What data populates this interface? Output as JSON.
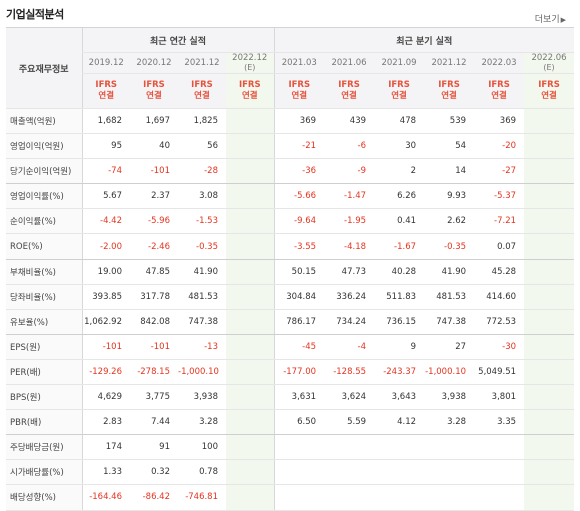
{
  "title": "기업실적분석",
  "more_label": "더보기",
  "header": {
    "corner": "주요재무정보",
    "annual_group": "최근 연간 실적",
    "quarter_group": "최근 분기 실적",
    "ifrs_top": "IFRS",
    "ifrs_bottom": "연결",
    "annual_periods": [
      "2019.12",
      "2020.12",
      "2021.12",
      "2022.12"
    ],
    "annual_est": "(E)",
    "quarter_periods": [
      "2021.03",
      "2021.06",
      "2021.09",
      "2021.12",
      "2022.03",
      "2022.06"
    ],
    "quarter_est": "(E)"
  },
  "rows": [
    {
      "label": "매출액(억원)",
      "annual": [
        "1,682",
        "1,697",
        "1,825",
        ""
      ],
      "quarter": [
        "369",
        "439",
        "478",
        "539",
        "369",
        ""
      ]
    },
    {
      "label": "영업이익(억원)",
      "annual": [
        "95",
        "40",
        "56",
        ""
      ],
      "quarter": [
        "-21",
        "-6",
        "30",
        "54",
        "-20",
        ""
      ]
    },
    {
      "label": "당기순이익(억원)",
      "annual": [
        "-74",
        "-101",
        "-28",
        ""
      ],
      "quarter": [
        "-36",
        "-9",
        "2",
        "14",
        "-27",
        ""
      ]
    },
    {
      "label": "영업이익률(%)",
      "annual": [
        "5.67",
        "2.37",
        "3.08",
        ""
      ],
      "quarter": [
        "-5.66",
        "-1.47",
        "6.26",
        "9.93",
        "-5.37",
        ""
      ]
    },
    {
      "label": "순이익률(%)",
      "annual": [
        "-4.42",
        "-5.96",
        "-1.53",
        ""
      ],
      "quarter": [
        "-9.64",
        "-1.95",
        "0.41",
        "2.62",
        "-7.21",
        ""
      ]
    },
    {
      "label": "ROE(%)",
      "annual": [
        "-2.00",
        "-2.46",
        "-0.35",
        ""
      ],
      "quarter": [
        "-3.55",
        "-4.18",
        "-1.67",
        "-0.35",
        "0.07",
        ""
      ]
    },
    {
      "label": "부채비율(%)",
      "annual": [
        "19.00",
        "47.85",
        "41.90",
        ""
      ],
      "quarter": [
        "50.15",
        "47.73",
        "40.28",
        "41.90",
        "45.28",
        ""
      ]
    },
    {
      "label": "당좌비율(%)",
      "annual": [
        "393.85",
        "317.78",
        "481.53",
        ""
      ],
      "quarter": [
        "304.84",
        "336.24",
        "511.83",
        "481.53",
        "414.60",
        ""
      ]
    },
    {
      "label": "유보율(%)",
      "annual": [
        "1,062.92",
        "842.08",
        "747.38",
        ""
      ],
      "quarter": [
        "786.17",
        "734.24",
        "736.15",
        "747.38",
        "772.53",
        ""
      ]
    },
    {
      "label": "EPS(원)",
      "annual": [
        "-101",
        "-101",
        "-13",
        ""
      ],
      "quarter": [
        "-45",
        "-4",
        "9",
        "27",
        "-30",
        ""
      ]
    },
    {
      "label": "PER(배)",
      "annual": [
        "-129.26",
        "-278.15",
        "-1,000.10",
        ""
      ],
      "quarter": [
        "-177.00",
        "-128.55",
        "-243.37",
        "-1,000.10",
        "5,049.51",
        ""
      ]
    },
    {
      "label": "BPS(원)",
      "annual": [
        "4,629",
        "3,775",
        "3,938",
        ""
      ],
      "quarter": [
        "3,631",
        "3,624",
        "3,643",
        "3,938",
        "3,801",
        ""
      ]
    },
    {
      "label": "PBR(배)",
      "annual": [
        "2.83",
        "7.44",
        "3.28",
        ""
      ],
      "quarter": [
        "6.50",
        "5.59",
        "4.12",
        "3.28",
        "3.35",
        ""
      ]
    },
    {
      "label": "주당배당금(원)",
      "annual": [
        "174",
        "91",
        "100",
        ""
      ],
      "quarter": [
        "",
        "",
        "",
        "",
        "",
        ""
      ]
    },
    {
      "label": "시가배당률(%)",
      "annual": [
        "1.33",
        "0.32",
        "0.78",
        ""
      ],
      "quarter": [
        "",
        "",
        "",
        "",
        "",
        ""
      ]
    },
    {
      "label": "배당성향(%)",
      "annual": [
        "-164.46",
        "-86.42",
        "-746.81",
        ""
      ],
      "quarter": [
        "",
        "",
        "",
        "",
        "",
        ""
      ]
    }
  ]
}
